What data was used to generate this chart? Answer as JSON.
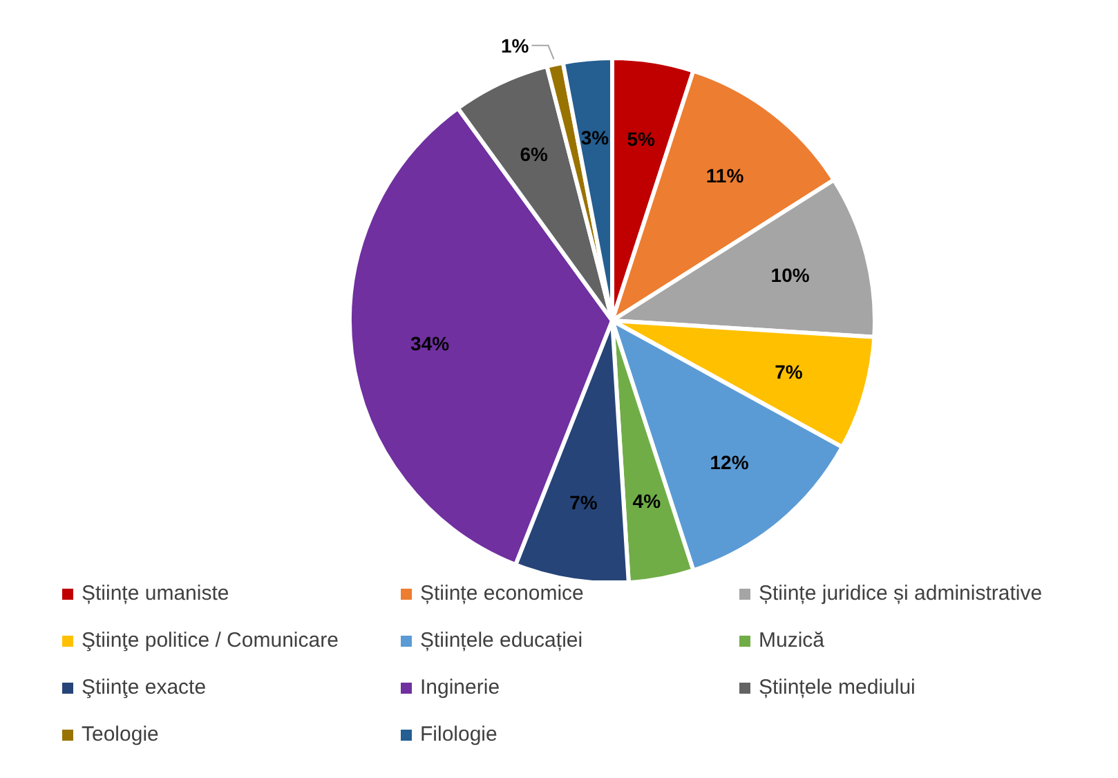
{
  "chart_data": {
    "type": "pie",
    "categories": [
      "Științe umaniste",
      "Științe economice",
      "Științe juridice și administrative",
      "Ştiinţe politice / Comunicare",
      "Științele educației",
      "Muzică",
      "Ştiinţe exacte",
      "Inginerie",
      "Științele mediului",
      "Teologie",
      "Filologie"
    ],
    "values": [
      5,
      11,
      10,
      7,
      12,
      4,
      7,
      34,
      6,
      1,
      3
    ],
    "colors": [
      "#c00000",
      "#ed7d31",
      "#a5a5a5",
      "#ffc000",
      "#5b9bd5",
      "#70ad47",
      "#264478",
      "#7030a0",
      "#636363",
      "#997300",
      "#255e91"
    ],
    "value_labels": [
      "5%",
      "11%",
      "10%",
      "7%",
      "12%",
      "4%",
      "7%",
      "34%",
      "6%",
      "1%",
      "3%"
    ],
    "legend": "bottom"
  }
}
